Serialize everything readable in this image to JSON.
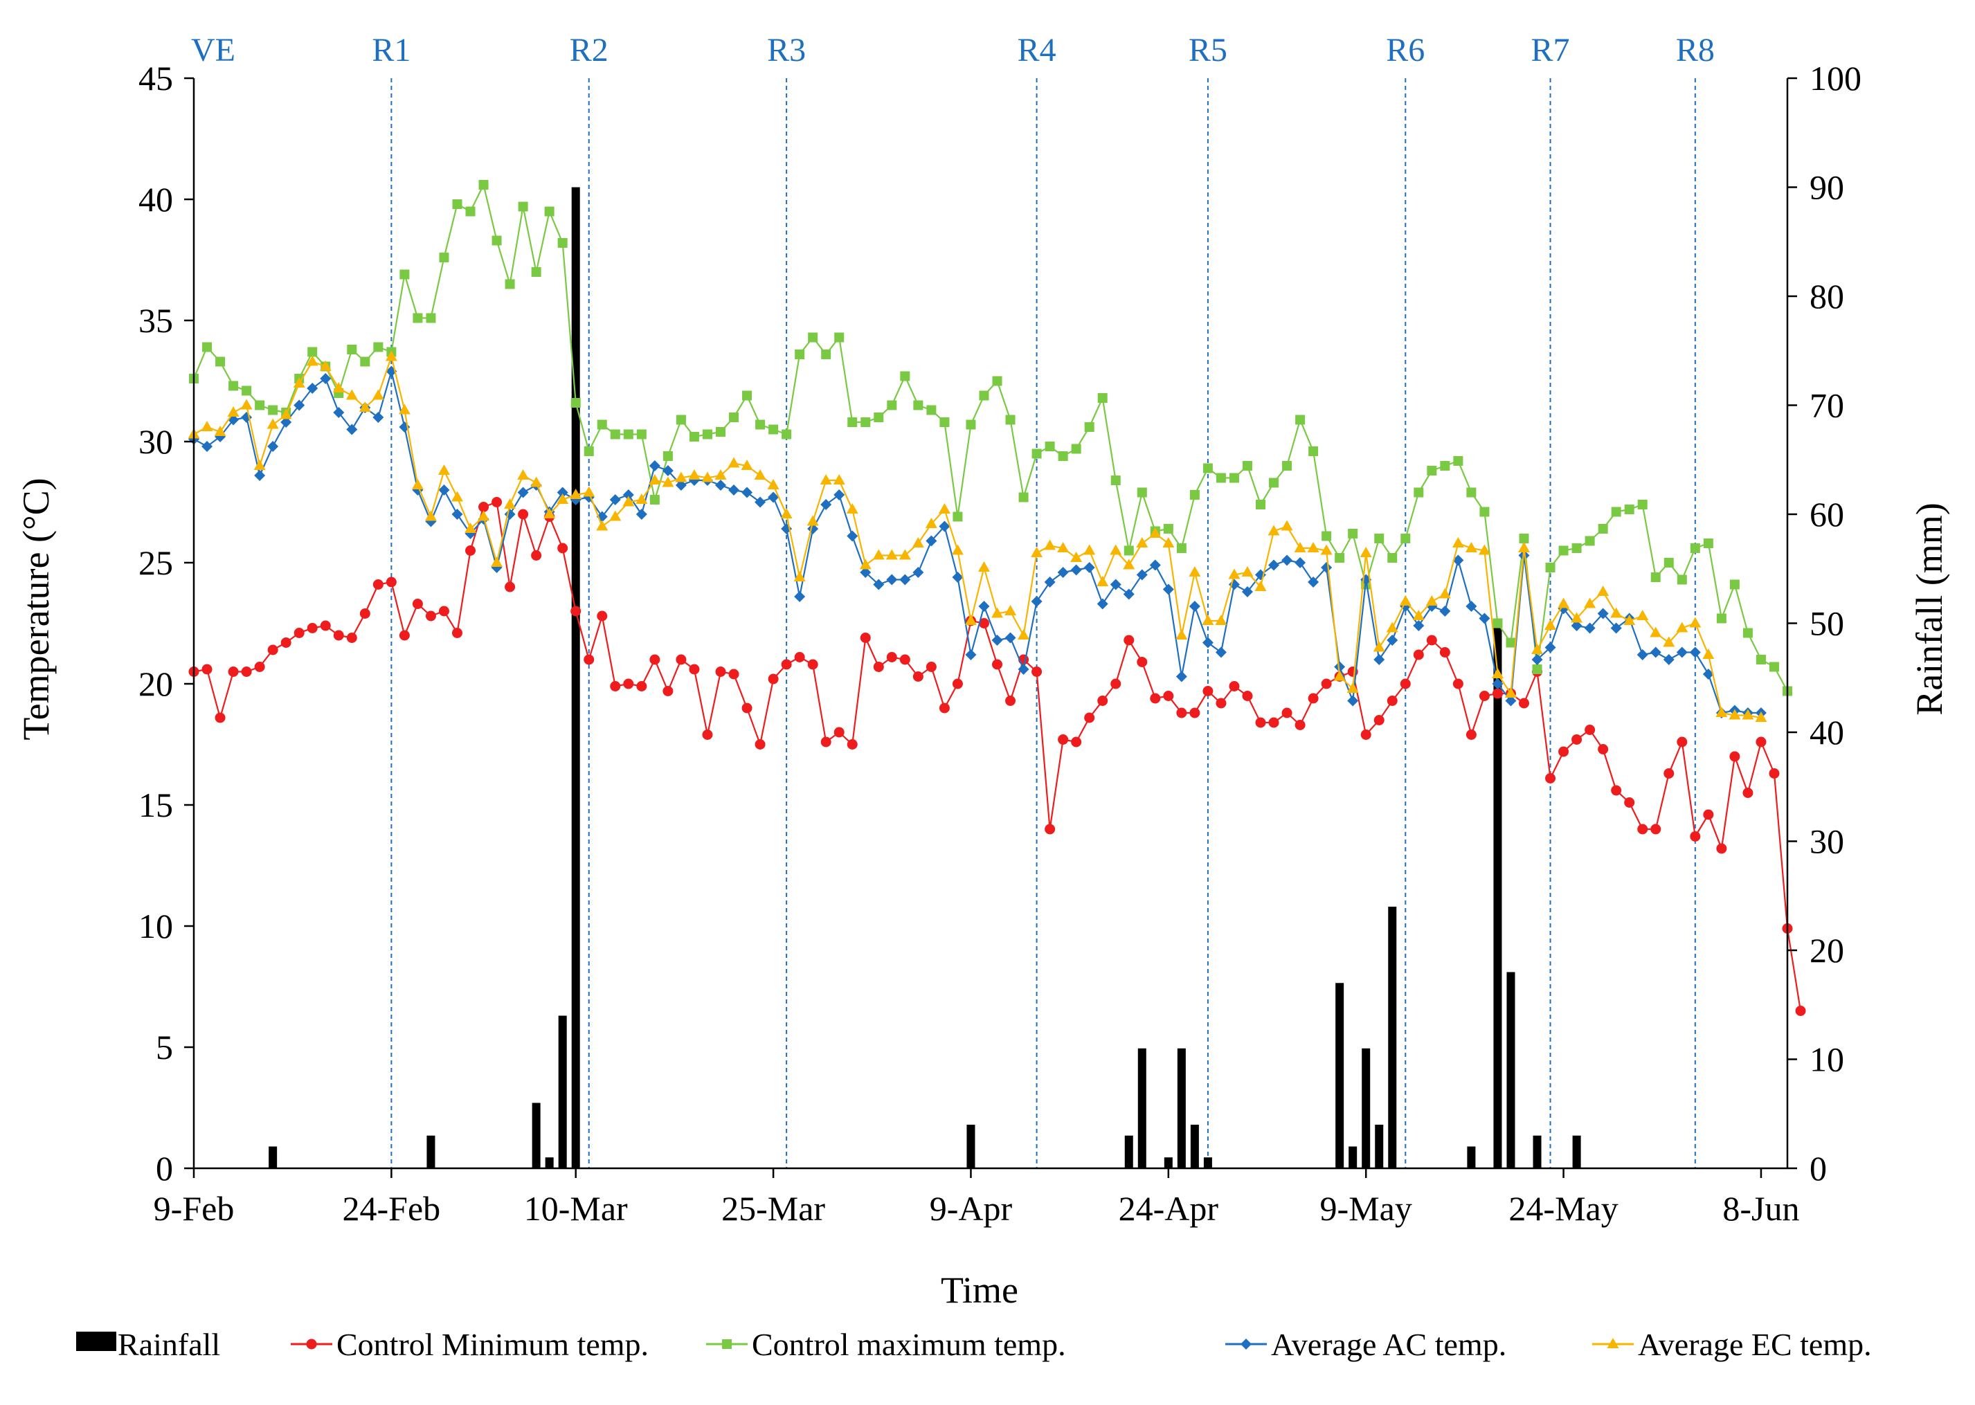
{
  "colors": {
    "rainfall": "#000000",
    "control_min": "#ee1c1c",
    "control_max": "#7ac943",
    "average_ac": "#1f6fc1",
    "average_ec": "#f7b500",
    "stage": "#1f6fc1"
  },
  "chart_data": {
    "type": "line",
    "xlabel": "Time",
    "ylabel_left": "Temperature (°C)",
    "ylabel_right": "Rainfall (mm)",
    "ylim_left": [
      0,
      45
    ],
    "ylim_right": [
      0,
      100
    ],
    "yticks_left": [
      "0",
      "5",
      "10",
      "15",
      "20",
      "25",
      "30",
      "35",
      "40",
      "45"
    ],
    "yticks_right": [
      "0",
      "10",
      "20",
      "30",
      "40",
      "50",
      "60",
      "70",
      "80",
      "90",
      "100"
    ],
    "x_range": [
      "2017-02-09",
      "2017-06-10"
    ],
    "x_ticks": [
      {
        "date": "2017-02-09",
        "label": "9-Feb"
      },
      {
        "date": "2017-02-24",
        "label": "24-Feb"
      },
      {
        "date": "2017-03-10",
        "label": "10-Mar"
      },
      {
        "date": "2017-03-25",
        "label": "25-Mar"
      },
      {
        "date": "2017-04-09",
        "label": "9-Apr"
      },
      {
        "date": "2017-04-24",
        "label": "24-Apr"
      },
      {
        "date": "2017-05-09",
        "label": "9-May"
      },
      {
        "date": "2017-05-24",
        "label": "24-May"
      },
      {
        "date": "2017-06-08",
        "label": "8-Jun"
      }
    ],
    "growth_stages": [
      {
        "label": "VE",
        "date": "2017-02-09"
      },
      {
        "label": "R1",
        "date": "2017-02-24"
      },
      {
        "label": "R2",
        "date": "2017-03-11"
      },
      {
        "label": "R3",
        "date": "2017-03-26"
      },
      {
        "label": "R4",
        "date": "2017-04-14"
      },
      {
        "label": "R5",
        "date": "2017-04-27"
      },
      {
        "label": "R6",
        "date": "2017-05-12"
      },
      {
        "label": "R7",
        "date": "2017-05-23"
      },
      {
        "label": "R8",
        "date": "2017-06-03"
      }
    ],
    "legend": [
      "Rainfall",
      "Control Minimum temp.",
      "Control maximum temp.",
      "Average AC temp.",
      "Average EC temp."
    ],
    "legend_position": "bottom",
    "rainfall": {
      "name": "Rainfall",
      "axis": "right",
      "dates": [
        "2017-02-15",
        "2017-02-27",
        "2017-03-07",
        "2017-03-08",
        "2017-03-09",
        "2017-03-10",
        "2017-04-09",
        "2017-04-21",
        "2017-04-22",
        "2017-04-24",
        "2017-04-25",
        "2017-04-26",
        "2017-04-27",
        "2017-05-07",
        "2017-05-08",
        "2017-05-09",
        "2017-05-10",
        "2017-05-11",
        "2017-05-17",
        "2017-05-19",
        "2017-05-20",
        "2017-05-22",
        "2017-05-25"
      ],
      "values": [
        2,
        3,
        6,
        1,
        14,
        90,
        4,
        3,
        11,
        1,
        11,
        4,
        1,
        17,
        2,
        11,
        4,
        24,
        2,
        50,
        18,
        3,
        3
      ]
    },
    "series": [
      {
        "name": "Control Minimum temp.",
        "key": "control_min",
        "marker": "circle",
        "start": "2017-02-09",
        "values": [
          20.5,
          20.6,
          18.6,
          20.5,
          20.5,
          20.7,
          21.4,
          21.7,
          22.1,
          22.3,
          22.4,
          22.0,
          21.9,
          22.9,
          24.1,
          24.2,
          22.0,
          23.3,
          22.8,
          23.0,
          22.1,
          25.5,
          27.3,
          27.5,
          24.0,
          27.0,
          25.3,
          26.9,
          25.6,
          23.0,
          21.0,
          22.8,
          19.9,
          20.0,
          19.9,
          21.0,
          19.7,
          21.0,
          20.6,
          17.9,
          20.5,
          20.4,
          19.0,
          17.5,
          20.2,
          20.8,
          21.1,
          20.8,
          17.6,
          18.0,
          17.5,
          21.9,
          20.7,
          21.1,
          21.0,
          20.3,
          20.7,
          19.0,
          20.0,
          22.6,
          22.5,
          20.8,
          19.3,
          21.0,
          20.5,
          14.0,
          17.7,
          17.6,
          18.6,
          19.3,
          20.0,
          21.8,
          20.9,
          19.4,
          19.5,
          18.8,
          18.8,
          19.7,
          19.2,
          19.9,
          19.5,
          18.4,
          18.4,
          18.8,
          18.3,
          19.4,
          20.0,
          20.3,
          20.5,
          17.9,
          18.5,
          19.3,
          20.0,
          21.2,
          21.8,
          21.3,
          20.0,
          17.9,
          19.5,
          19.6,
          19.6,
          19.2,
          20.5,
          16.1,
          17.2,
          17.7,
          18.1,
          17.3,
          15.6,
          15.1,
          14.0,
          14.0,
          16.3,
          17.6,
          13.7,
          14.6,
          13.2,
          17.0,
          15.5,
          17.6,
          16.3,
          9.9,
          6.5
        ]
      },
      {
        "name": "Control maximum temp.",
        "key": "control_max",
        "marker": "square",
        "start": "2017-02-09",
        "values": [
          32.6,
          33.9,
          33.3,
          32.3,
          32.1,
          31.5,
          31.3,
          31.2,
          32.6,
          33.7,
          33.1,
          32.0,
          33.8,
          33.3,
          33.9,
          33.7,
          36.9,
          35.1,
          35.1,
          37.6,
          39.8,
          39.5,
          40.6,
          38.3,
          36.5,
          39.7,
          37.0,
          39.5,
          38.2,
          31.6,
          29.6,
          30.7,
          30.3,
          30.3,
          30.3,
          27.6,
          29.4,
          30.9,
          30.2,
          30.3,
          30.4,
          31.0,
          31.9,
          30.7,
          30.5,
          30.3,
          33.6,
          34.3,
          33.6,
          34.3,
          30.8,
          30.8,
          31.0,
          31.5,
          32.7,
          31.5,
          31.3,
          30.8,
          26.9,
          30.7,
          31.9,
          32.5,
          30.9,
          27.7,
          29.5,
          29.8,
          29.4,
          29.7,
          30.6,
          31.8,
          28.4,
          25.5,
          27.9,
          26.3,
          26.4,
          25.6,
          27.8,
          28.9,
          28.5,
          28.5,
          29.0,
          27.4,
          28.3,
          29.0,
          30.9,
          29.6,
          26.1,
          25.2,
          26.2,
          24.1,
          26.0,
          25.2,
          26.0,
          27.9,
          28.8,
          29.0,
          29.2,
          27.9,
          27.1,
          22.5,
          21.7,
          26.0,
          20.6,
          24.8,
          25.5,
          25.6,
          25.9,
          26.4,
          27.1,
          27.2,
          27.4,
          24.4,
          25.0,
          24.3,
          25.6,
          25.8,
          22.7,
          24.1,
          22.1,
          21.0,
          20.7,
          19.7
        ]
      },
      {
        "name": "Average AC temp.",
        "key": "average_ac",
        "marker": "diamond",
        "start": "2017-02-09",
        "values": [
          30.1,
          29.8,
          30.2,
          30.9,
          31.0,
          28.6,
          29.8,
          30.8,
          31.5,
          32.2,
          32.6,
          31.2,
          30.5,
          31.4,
          31.0,
          32.9,
          30.6,
          28.0,
          26.7,
          28.0,
          27.0,
          26.2,
          26.8,
          24.8,
          27.0,
          27.9,
          28.2,
          27.1,
          27.9,
          27.6,
          27.7,
          26.9,
          27.6,
          27.8,
          27.0,
          29.0,
          28.8,
          28.2,
          28.4,
          28.4,
          28.2,
          28.0,
          27.9,
          27.5,
          27.7,
          26.4,
          23.6,
          26.4,
          27.4,
          27.8,
          26.1,
          24.6,
          24.1,
          24.3,
          24.3,
          24.6,
          25.9,
          26.5,
          24.4,
          21.2,
          23.2,
          21.8,
          21.9,
          20.6,
          23.4,
          24.2,
          24.6,
          24.7,
          24.8,
          23.3,
          24.1,
          23.7,
          24.5,
          24.9,
          23.9,
          20.3,
          23.2,
          21.7,
          21.3,
          24.1,
          23.8,
          24.5,
          24.9,
          25.1,
          25.0,
          24.2,
          24.8,
          20.7,
          19.3,
          24.3,
          21.0,
          21.8,
          23.2,
          22.4,
          23.2,
          23.0,
          25.1,
          23.2,
          22.7,
          20.0,
          19.3,
          25.3,
          21.0,
          21.5,
          23.1,
          22.4,
          22.3,
          22.9,
          22.3,
          22.7,
          21.2,
          21.3,
          21.0,
          21.3,
          21.3,
          20.4,
          18.8,
          18.9,
          18.8,
          18.8
        ]
      },
      {
        "name": "Average EC temp.",
        "key": "average_ec",
        "marker": "triangle",
        "start": "2017-02-09",
        "values": [
          30.3,
          30.6,
          30.4,
          31.2,
          31.5,
          29.0,
          30.7,
          31.1,
          32.4,
          33.3,
          33.1,
          32.2,
          31.9,
          31.4,
          31.9,
          33.5,
          31.3,
          28.2,
          26.9,
          28.8,
          27.7,
          26.4,
          26.9,
          25.0,
          27.4,
          28.6,
          28.3,
          27.0,
          27.6,
          27.8,
          27.9,
          26.5,
          26.9,
          27.5,
          27.6,
          28.4,
          28.3,
          28.5,
          28.6,
          28.5,
          28.6,
          29.1,
          29.0,
          28.6,
          28.2,
          27.0,
          24.4,
          26.7,
          28.4,
          28.4,
          27.2,
          24.9,
          25.3,
          25.3,
          25.3,
          25.8,
          26.6,
          27.2,
          25.5,
          22.6,
          24.8,
          22.9,
          23.0,
          22.0,
          25.4,
          25.7,
          25.6,
          25.2,
          25.5,
          24.2,
          25.5,
          24.9,
          25.8,
          26.2,
          25.8,
          22.0,
          24.6,
          22.6,
          22.6,
          24.5,
          24.6,
          24.0,
          26.3,
          26.5,
          25.6,
          25.6,
          25.5,
          20.3,
          19.8,
          25.4,
          21.5,
          22.3,
          23.4,
          22.8,
          23.4,
          23.7,
          25.8,
          25.6,
          25.5,
          20.4,
          19.6,
          25.6,
          21.4,
          22.4,
          23.3,
          22.7,
          23.3,
          23.8,
          22.9,
          22.6,
          22.8,
          22.1,
          21.7,
          22.3,
          22.5,
          21.2,
          18.8,
          18.7,
          18.7,
          18.6
        ]
      }
    ]
  }
}
